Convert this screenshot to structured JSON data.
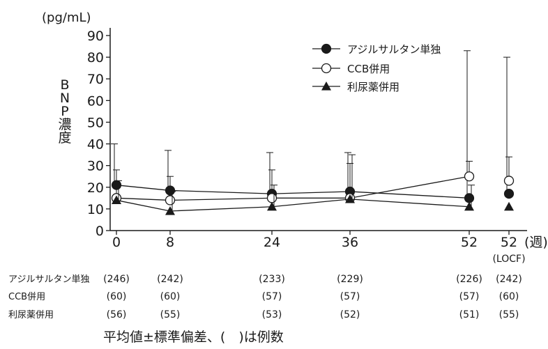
{
  "chart_data": {
    "type": "line",
    "y_unit": "(pg/mL)",
    "ylabel_chars": [
      "B",
      "N",
      "P",
      "濃",
      "度"
    ],
    "ylim": [
      0,
      90
    ],
    "yticks": [
      0,
      10,
      20,
      30,
      40,
      50,
      60,
      70,
      80,
      90
    ],
    "x_ticks": [
      {
        "label": "0",
        "sublabel": ""
      },
      {
        "label": "8",
        "sublabel": ""
      },
      {
        "label": "24",
        "sublabel": ""
      },
      {
        "label": "36",
        "sublabel": ""
      },
      {
        "label": "52",
        "sublabel": ""
      },
      {
        "label": "52",
        "sublabel": "(LOCF)"
      }
    ],
    "x_unit": "(週)",
    "series": [
      {
        "name": "アジルサルタン単独",
        "marker": "filled-circle",
        "values": [
          21,
          18.5,
          17,
          18,
          15,
          17
        ],
        "err_upper": [
          40,
          37,
          36,
          36,
          83,
          80
        ],
        "connect_points": 5
      },
      {
        "name": "CCB併用",
        "marker": "open-circle",
        "values": [
          15,
          14,
          15,
          15,
          25,
          23
        ],
        "err_upper": [
          28,
          25,
          28,
          31,
          32,
          34
        ],
        "connect_points": 5
      },
      {
        "name": "利尿薬併用",
        "marker": "filled-triangle",
        "values": [
          14,
          9,
          11,
          14.5,
          11,
          11
        ],
        "err_upper": [
          23,
          18,
          21,
          35,
          21,
          0
        ],
        "connect_points": 5
      }
    ],
    "counts_table": {
      "rows": [
        {
          "label": "アジルサルタン単独",
          "values": [
            "(246)",
            "(242)",
            "(233)",
            "(229)",
            "(226)",
            "(242)"
          ]
        },
        {
          "label": "CCB併用",
          "values": [
            "(60)",
            "(60)",
            "(57)",
            "(57)",
            "(57)",
            "(60)"
          ]
        },
        {
          "label": "利尿薬併用",
          "values": [
            "(56)",
            "(55)",
            "(53)",
            "(52)",
            "(51)",
            "(55)"
          ]
        }
      ]
    },
    "footnote": "平均値±標準偏差、(　)は例数",
    "legend_position": "top-right",
    "grid": false
  }
}
